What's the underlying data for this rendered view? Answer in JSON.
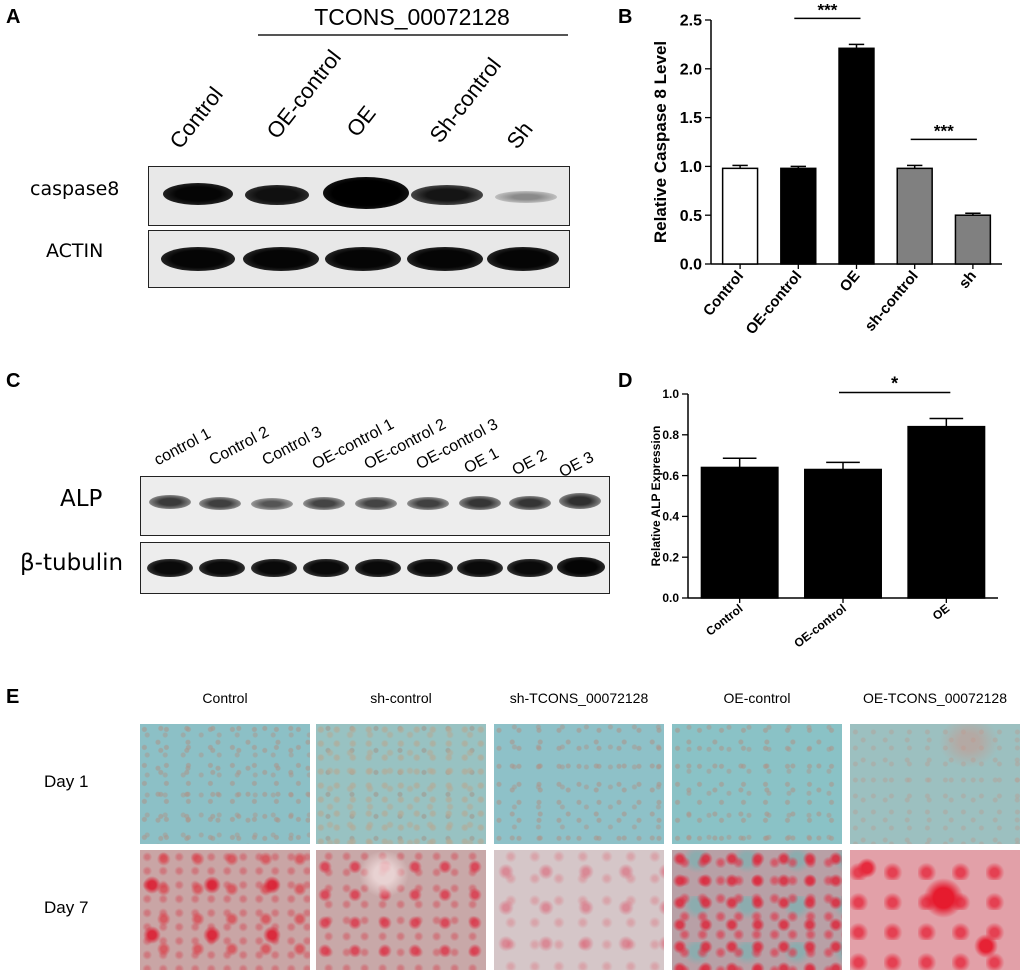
{
  "panels": {
    "A": {
      "letter": "A",
      "group_title": "TCONS_00072128",
      "lanes": [
        "Control",
        "OE-control",
        "OE",
        "Sh-control",
        "Sh"
      ],
      "rows": [
        "caspase8",
        "ACTIN"
      ]
    },
    "B": {
      "letter": "B"
    },
    "C": {
      "letter": "C",
      "lanes": [
        "control 1",
        "Control 2",
        "Control 3",
        "OE-control 1",
        "OE-control 2",
        "OE-control 3",
        "OE 1",
        "OE 2",
        "OE 3"
      ],
      "rows": [
        "ALP",
        "β-tubulin"
      ]
    },
    "D": {
      "letter": "D"
    },
    "E": {
      "letter": "E",
      "columns": [
        "Control",
        "sh-control",
        "sh-TCONS_00072128",
        "OE-control",
        "OE-TCONS_00072128"
      ],
      "rows": [
        "Day 1",
        "Day 7"
      ]
    }
  },
  "chart_data": [
    {
      "type": "bar",
      "panel": "B",
      "categories": [
        "Control",
        "OE-control",
        "OE",
        "sh-control",
        "sh"
      ],
      "values": [
        0.98,
        0.98,
        2.21,
        0.98,
        0.5
      ],
      "errors": [
        0.03,
        0.02,
        0.04,
        0.03,
        0.02
      ],
      "bar_colors": [
        "#ffffff",
        "#000000",
        "#000000",
        "#808080",
        "#808080"
      ],
      "ylabel": "Relative Caspase 8 Level",
      "ylim": [
        0,
        2.5
      ],
      "yticks": [
        "0.0",
        "0.5",
        "1.0",
        "1.5",
        "2.0",
        "2.5"
      ],
      "significance": [
        {
          "from": 1,
          "to": 2,
          "label": "***"
        },
        {
          "from": 3,
          "to": 4,
          "label": "***"
        }
      ]
    },
    {
      "type": "bar",
      "panel": "D",
      "categories": [
        "Control",
        "OE-control",
        "OE"
      ],
      "values": [
        0.64,
        0.63,
        0.84
      ],
      "errors": [
        0.045,
        0.035,
        0.04
      ],
      "bar_colors": [
        "#000000",
        "#000000",
        "#000000"
      ],
      "ylabel": "Relative ALP Expression",
      "ylim": [
        0,
        1.0
      ],
      "yticks": [
        "0.0",
        "0.2",
        "0.4",
        "0.6",
        "0.8",
        "1.0"
      ],
      "significance": [
        {
          "from": 1,
          "to": 2,
          "label": "*"
        }
      ]
    }
  ]
}
